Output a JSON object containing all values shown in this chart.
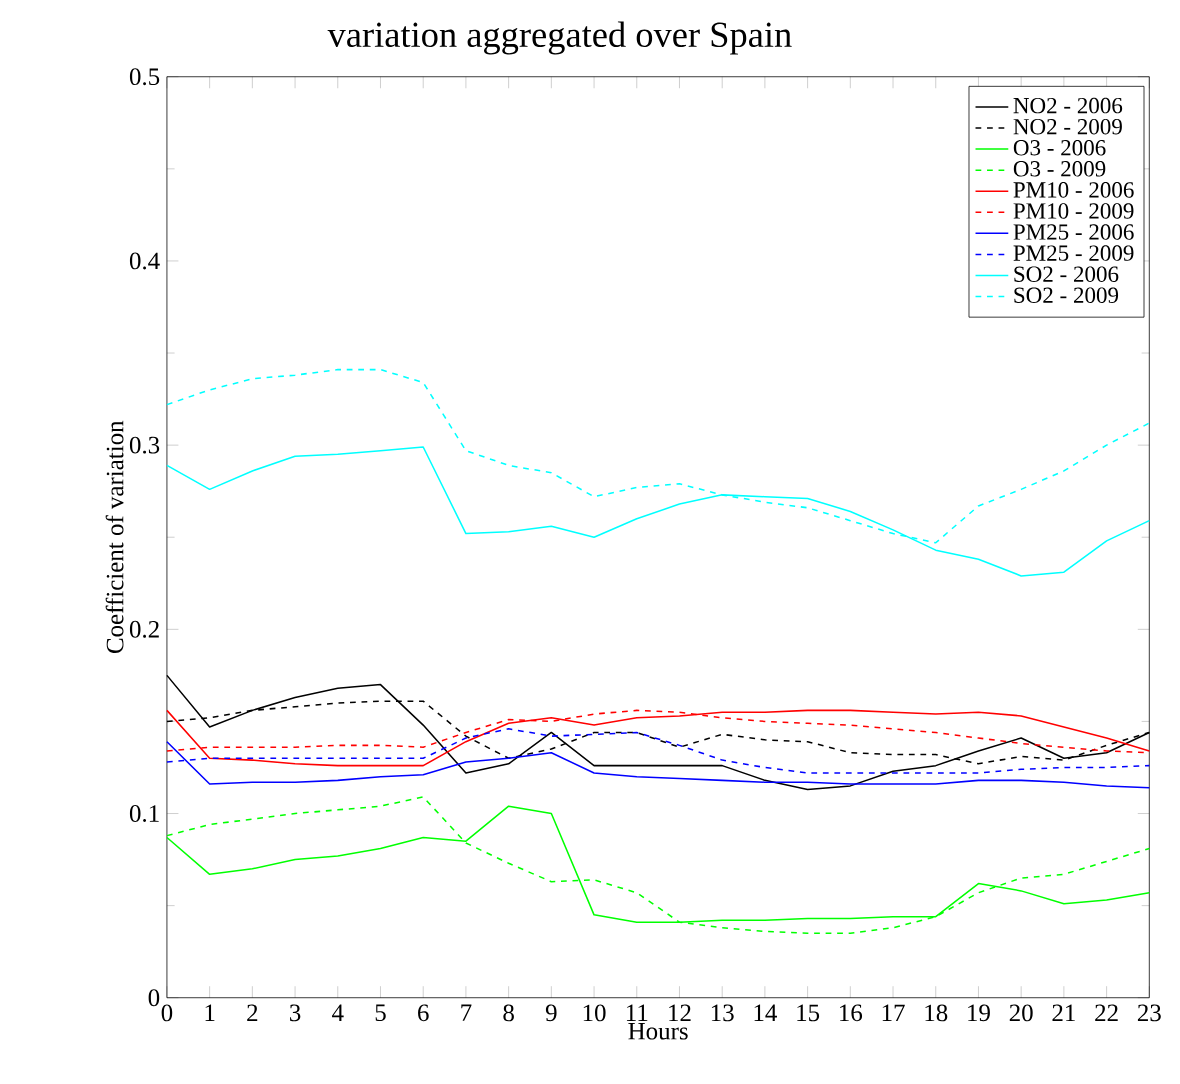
{
  "chart_data": {
    "type": "line",
    "title": "variation aggregated over Spain",
    "xlabel": "Hours",
    "ylabel": "Coefficient of variation",
    "x": [
      0,
      1,
      2,
      3,
      4,
      5,
      6,
      7,
      8,
      9,
      10,
      11,
      12,
      13,
      14,
      15,
      16,
      17,
      18,
      19,
      20,
      21,
      22,
      23
    ],
    "xlim": [
      0,
      23
    ],
    "xticks": [
      0,
      1,
      2,
      3,
      4,
      5,
      6,
      7,
      8,
      9,
      10,
      11,
      12,
      13,
      14,
      15,
      16,
      17,
      18,
      19,
      20,
      21,
      22,
      23
    ],
    "ylim": [
      0,
      0.5
    ],
    "yticks": [
      0,
      0.1,
      0.2,
      0.3,
      0.4,
      0.5
    ],
    "grid": false,
    "legend": "top right",
    "marker": "none",
    "series": [
      {
        "name": "NO2 - 2006",
        "color": "#000000",
        "line_style": "solid",
        "values": [
          0.175,
          0.147,
          0.156,
          0.163,
          0.168,
          0.17,
          0.148,
          0.122,
          0.127,
          0.144,
          0.126,
          0.126,
          0.126,
          0.126,
          0.118,
          0.113,
          0.115,
          0.123,
          0.126,
          0.134,
          0.141,
          0.13,
          0.133,
          0.144
        ]
      },
      {
        "name": "NO2 - 2009",
        "color": "#000000",
        "line_style": "dashed",
        "values": [
          0.15,
          0.152,
          0.156,
          0.158,
          0.16,
          0.161,
          0.161,
          0.142,
          0.13,
          0.135,
          0.144,
          0.144,
          0.136,
          0.143,
          0.14,
          0.139,
          0.133,
          0.132,
          0.132,
          0.127,
          0.131,
          0.129,
          0.137,
          0.144
        ]
      },
      {
        "name": "O3 - 2006",
        "color": "#00ff00",
        "line_style": "solid",
        "values": [
          0.087,
          0.067,
          0.07,
          0.075,
          0.077,
          0.081,
          0.087,
          0.085,
          0.104,
          0.1,
          0.045,
          0.041,
          0.041,
          0.042,
          0.042,
          0.043,
          0.043,
          0.044,
          0.044,
          0.062,
          0.058,
          0.051,
          0.053,
          0.057
        ]
      },
      {
        "name": "O3 - 2009",
        "color": "#00ff00",
        "line_style": "dashed",
        "values": [
          0.088,
          0.094,
          0.097,
          0.1,
          0.102,
          0.104,
          0.109,
          0.084,
          0.073,
          0.063,
          0.064,
          0.057,
          0.041,
          0.038,
          0.036,
          0.035,
          0.035,
          0.038,
          0.044,
          0.057,
          0.065,
          0.067,
          0.074,
          0.081
        ]
      },
      {
        "name": "PM10 - 2006",
        "color": "#ff0000",
        "line_style": "solid",
        "values": [
          0.156,
          0.13,
          0.129,
          0.127,
          0.126,
          0.126,
          0.126,
          0.139,
          0.149,
          0.152,
          0.148,
          0.152,
          0.153,
          0.155,
          0.155,
          0.156,
          0.156,
          0.155,
          0.154,
          0.155,
          0.153,
          0.147,
          0.141,
          0.134
        ]
      },
      {
        "name": "PM10 - 2009",
        "color": "#ff0000",
        "line_style": "dashed",
        "values": [
          0.134,
          0.136,
          0.136,
          0.136,
          0.137,
          0.137,
          0.136,
          0.144,
          0.151,
          0.15,
          0.154,
          0.156,
          0.155,
          0.152,
          0.15,
          0.149,
          0.148,
          0.146,
          0.144,
          0.141,
          0.138,
          0.136,
          0.134,
          0.133
        ]
      },
      {
        "name": "PM25 - 2006",
        "color": "#0000ff",
        "line_style": "solid",
        "values": [
          0.139,
          0.116,
          0.117,
          0.117,
          0.118,
          0.12,
          0.121,
          0.128,
          0.13,
          0.133,
          0.122,
          0.12,
          0.119,
          0.118,
          0.117,
          0.117,
          0.116,
          0.116,
          0.116,
          0.118,
          0.118,
          0.117,
          0.115,
          0.114
        ]
      },
      {
        "name": "PM25 - 2009",
        "color": "#0000ff",
        "line_style": "dashed",
        "values": [
          0.128,
          0.13,
          0.13,
          0.13,
          0.13,
          0.13,
          0.13,
          0.141,
          0.146,
          0.142,
          0.143,
          0.144,
          0.137,
          0.129,
          0.125,
          0.122,
          0.122,
          0.122,
          0.122,
          0.122,
          0.124,
          0.125,
          0.125,
          0.126
        ]
      },
      {
        "name": "SO2 - 2006",
        "color": "#00ffff",
        "line_style": "solid",
        "values": [
          0.289,
          0.276,
          0.286,
          0.294,
          0.295,
          0.297,
          0.299,
          0.252,
          0.253,
          0.256,
          0.25,
          0.26,
          0.268,
          0.273,
          0.272,
          0.271,
          0.264,
          0.254,
          0.243,
          0.238,
          0.229,
          0.231,
          0.248,
          0.259
        ]
      },
      {
        "name": "SO2 - 2009",
        "color": "#00ffff",
        "line_style": "dashed",
        "values": [
          0.322,
          0.33,
          0.336,
          0.338,
          0.341,
          0.341,
          0.334,
          0.297,
          0.289,
          0.285,
          0.272,
          0.277,
          0.279,
          0.273,
          0.269,
          0.266,
          0.259,
          0.252,
          0.247,
          0.267,
          0.276,
          0.286,
          0.3,
          0.312
        ]
      }
    ]
  }
}
